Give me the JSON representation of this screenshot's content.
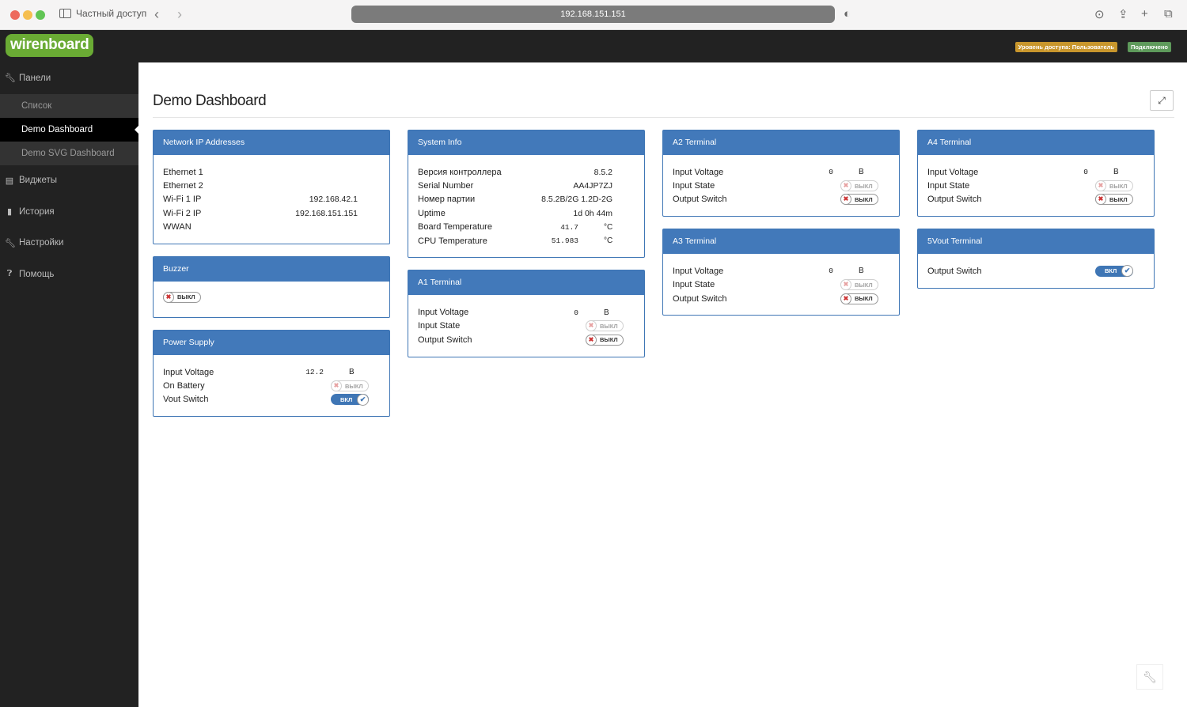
{
  "browser": {
    "tab_label": "Частный доступ",
    "url": "192.168.151.151"
  },
  "topbar": {
    "logo": "wirenboard",
    "access_badge": "Уровень доступа: Пользователь",
    "status_badge": "Подключено",
    "access_color": "#c8962c",
    "status_color": "#5e9a5b"
  },
  "sidebar": {
    "panels": "Панели",
    "sub": [
      "Список",
      "Demo Dashboard",
      "Demo SVG Dashboard"
    ],
    "active": "Demo Dashboard",
    "items": [
      "Виджеты",
      "История",
      "Настройки",
      "Помощь"
    ]
  },
  "page": {
    "title": "Demo Dashboard"
  },
  "switch_labels": {
    "on": "ВКЛ",
    "off": "ВЫКЛ"
  },
  "columns": [
    [
      {
        "title": "Network IP Addresses",
        "rows": [
          {
            "label": "Ethernet 1",
            "text": ""
          },
          {
            "label": "Ethernet 2",
            "text": ""
          },
          {
            "label": "Wi-Fi 1 IP",
            "text": "192.168.42.1"
          },
          {
            "label": "Wi-Fi 2 IP",
            "text": "192.168.151.151"
          },
          {
            "label": "WWAN",
            "text": ""
          }
        ]
      },
      {
        "title": "Buzzer",
        "buzzer": {
          "on": false
        }
      },
      {
        "title": "Power Supply",
        "rows": [
          {
            "label": "Input Voltage",
            "num": "12.2",
            "unit": "В"
          },
          {
            "label": "On Battery",
            "switch": false,
            "readonly": true
          },
          {
            "label": "Vout Switch",
            "switch": true,
            "readonly": false
          }
        ]
      }
    ],
    [
      {
        "title": "System Info",
        "rows": [
          {
            "label": "Версия контроллера",
            "text": "8.5.2"
          },
          {
            "label": "Serial Number",
            "text": "AA4JP7ZJ"
          },
          {
            "label": "Номер партии",
            "text": "8.5.2B/2G 1.2D-2G"
          },
          {
            "label": "Uptime",
            "text": "1d 0h 44m"
          },
          {
            "label": "Board Temperature",
            "num": "41.7",
            "unit": "°C"
          },
          {
            "label": "CPU Temperature",
            "num": "51.983",
            "unit": "°C"
          }
        ]
      },
      {
        "title": "A1 Terminal",
        "rows": [
          {
            "label": "Input Voltage",
            "num": "0",
            "unit": "В"
          },
          {
            "label": "Input State",
            "switch": false,
            "readonly": true
          },
          {
            "label": "Output Switch",
            "switch": false,
            "readonly": false
          }
        ]
      }
    ],
    [
      {
        "title": "A2 Terminal",
        "rows": [
          {
            "label": "Input Voltage",
            "num": "0",
            "unit": "В"
          },
          {
            "label": "Input State",
            "switch": false,
            "readonly": true
          },
          {
            "label": "Output Switch",
            "switch": false,
            "readonly": false
          }
        ]
      },
      {
        "title": "A3 Terminal",
        "rows": [
          {
            "label": "Input Voltage",
            "num": "0",
            "unit": "В"
          },
          {
            "label": "Input State",
            "switch": false,
            "readonly": true
          },
          {
            "label": "Output Switch",
            "switch": false,
            "readonly": false
          }
        ]
      }
    ],
    [
      {
        "title": "A4 Terminal",
        "rows": [
          {
            "label": "Input Voltage",
            "num": "0",
            "unit": "В"
          },
          {
            "label": "Input State",
            "switch": false,
            "readonly": true
          },
          {
            "label": "Output Switch",
            "switch": false,
            "readonly": false
          }
        ]
      },
      {
        "title": "5Vout Terminal",
        "rows": [
          {
            "label": "Output Switch",
            "switch": true,
            "readonly": false
          }
        ]
      }
    ]
  ]
}
